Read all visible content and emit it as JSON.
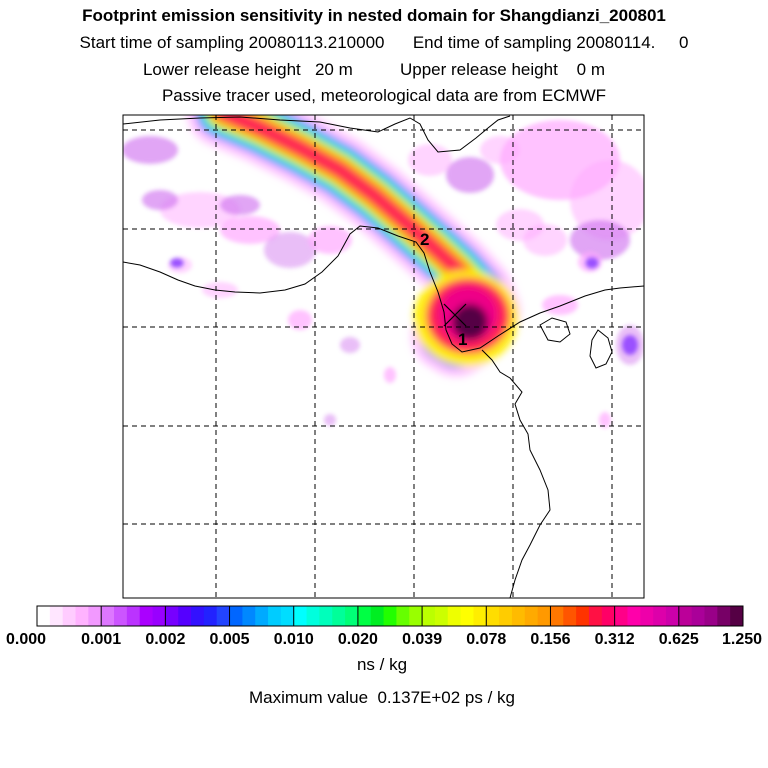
{
  "titles": {
    "main": "Footprint emission sensitivity in nested domain for Shangdianzi_200801",
    "sampling": "Start time of sampling 20080113.210000      End time of sampling 20080114.     0",
    "release": "Lower release height   20 m          Upper release height    0 m",
    "tracer": "Passive tracer used, meteorological data are from ECMWF"
  },
  "colors": {
    "plume_outer": "#ff99ff",
    "plume_blue": "#4466ff",
    "plume_cyan": "#00e5ff",
    "plume_green": "#33ee33",
    "plume_yellow": "#ffee00",
    "plume_orange": "#ff8800",
    "plume_red": "#ff2255",
    "plume_magenta": "#ee0088",
    "plume_dark": "#550044",
    "background_patch": "#cc66ee"
  },
  "chart_data": {
    "type": "heatmap",
    "unit": "ns / kg",
    "max_value_label": "Maximum value  0.137E+02 ps / kg",
    "colorbar": {
      "tick_labels": [
        "0.000",
        "0.001",
        "0.002",
        "0.005",
        "0.010",
        "0.020",
        "0.039",
        "0.078",
        "0.156",
        "0.312",
        "0.625",
        "1.250"
      ],
      "colors": [
        "#ffffff",
        "#ffe6ff",
        "#ffccff",
        "#ffb3ff",
        "#f299ff",
        "#dd77ff",
        "#cc55ff",
        "#bb33ff",
        "#aa00ff",
        "#9900ff",
        "#7700ff",
        "#5500ff",
        "#3311ff",
        "#2222ff",
        "#2244ff",
        "#0066ff",
        "#0088ff",
        "#00aaff",
        "#00ccff",
        "#00ddff",
        "#00ffff",
        "#00ffdd",
        "#00ffbb",
        "#00ff99",
        "#00ff77",
        "#00ff44",
        "#00ee22",
        "#22ff00",
        "#66ff00",
        "#99ff00",
        "#bbff00",
        "#ccff00",
        "#eeff00",
        "#ffff00",
        "#ffee00",
        "#ffdd00",
        "#ffcc00",
        "#ffbb00",
        "#ffaa00",
        "#ff9900",
        "#ff7700",
        "#ff5500",
        "#ff3300",
        "#ff1144",
        "#ff0066",
        "#ff0088",
        "#ff00aa",
        "#ee00aa",
        "#dd00aa",
        "#cc00aa",
        "#bb0099",
        "#aa0099",
        "#990088",
        "#770066",
        "#550044"
      ]
    },
    "markers": [
      {
        "label": "1"
      },
      {
        "label": "2"
      }
    ]
  }
}
